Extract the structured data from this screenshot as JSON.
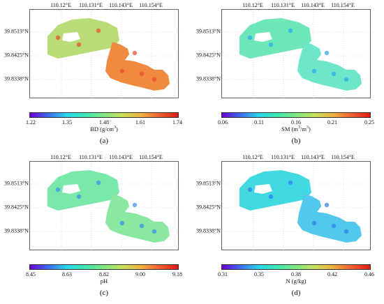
{
  "axes": {
    "longitudes": [
      "110.12°E",
      "110.131°E",
      "110.143°E",
      "110.154°E"
    ],
    "latitudes": [
      "39.8513°N",
      "39.8425°N",
      "39.8338°N"
    ]
  },
  "colormap": [
    "#6a00d8",
    "#3b6cf0",
    "#2ad8e8",
    "#3ee8b0",
    "#80e880",
    "#c8e05a",
    "#f0b040",
    "#f06030",
    "#e01818"
  ],
  "panels": [
    {
      "label": "(a)",
      "variable": "BD (g/cm3)",
      "unit_pre": "BD (g/cm",
      "unit_sup": "3",
      "unit_post": ")",
      "ticks": [
        "1.22",
        "1.35",
        "1.48",
        "1.61",
        "1.74"
      ],
      "west_color": "#b8dc78",
      "east_color": "#f08a40",
      "accent": "#e84a2a"
    },
    {
      "label": "(b)",
      "variable": "SM (m3/m3)",
      "unit_pre": "SM (m",
      "unit_sup": "3",
      "unit_post": "/m",
      "unit_sup2": "3",
      "unit_end": ")",
      "ticks": [
        "0.06",
        "0.11",
        "0.16",
        "0.21",
        "0.25"
      ],
      "west_color": "#6ee6b8",
      "east_color": "#6ee6c8",
      "accent": "#2aa8e8"
    },
    {
      "label": "(c)",
      "variable": "pH",
      "unit_pre": "pH",
      "ticks": [
        "8.45",
        "8.63",
        "8.82",
        "9.00",
        "9.18"
      ],
      "west_color": "#7ae8a8",
      "east_color": "#8ae8a0",
      "accent": "#3a8cf0"
    },
    {
      "label": "(d)",
      "variable": "N (g/kg)",
      "unit_pre": "N (g/kg)",
      "ticks": [
        "0.31",
        "0.35",
        "0.38",
        "0.42",
        "0.46"
      ],
      "west_color": "#42d8e0",
      "east_color": "#52c8ec",
      "accent": "#2a7cf0"
    }
  ]
}
